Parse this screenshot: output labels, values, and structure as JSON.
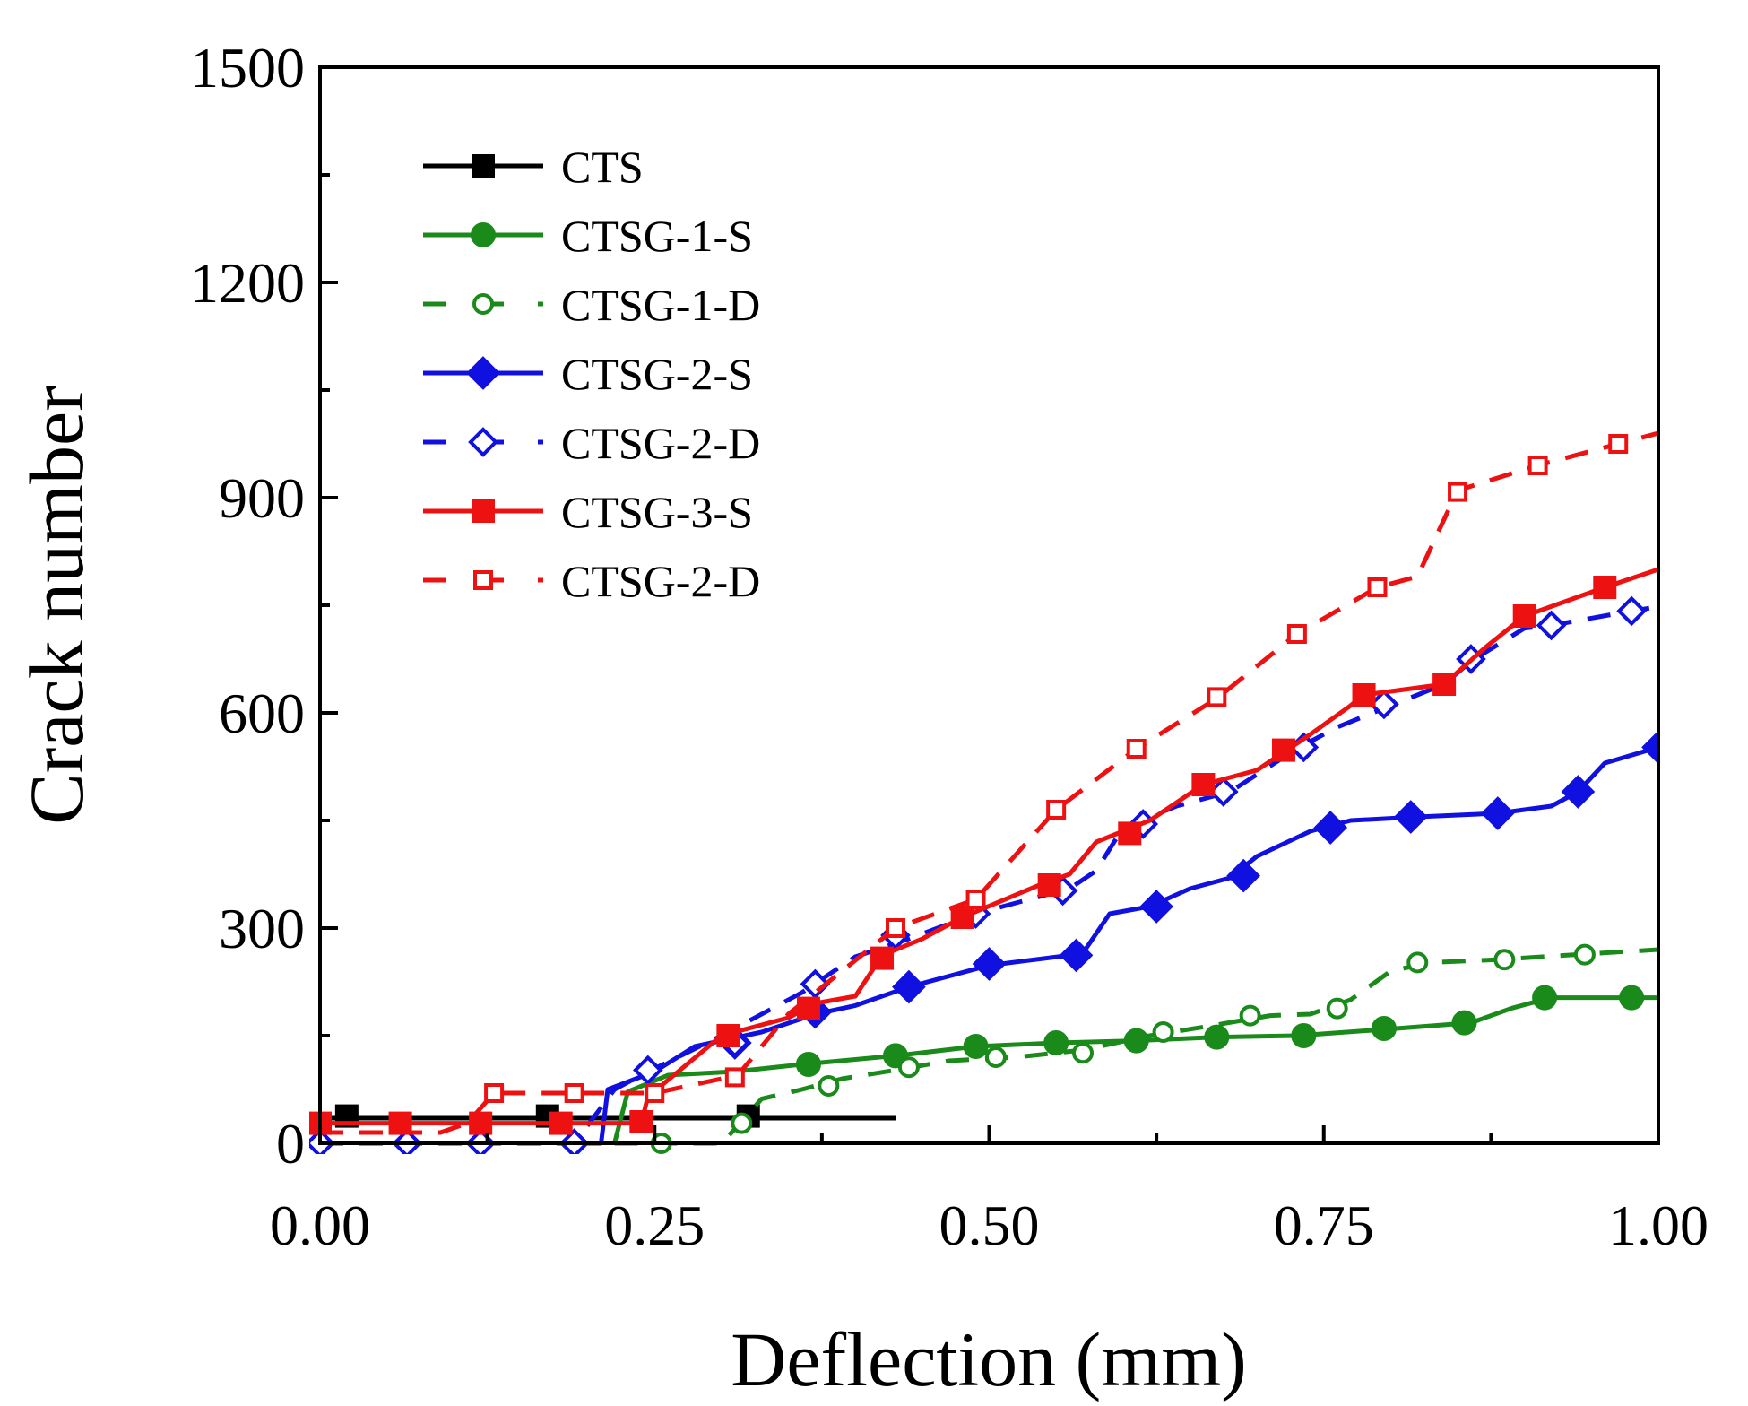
{
  "chart_data": {
    "type": "line",
    "title": "",
    "xlabel": "Deflection (mm)",
    "ylabel": "Crack number",
    "xlim": [
      0,
      1
    ],
    "ylim": [
      0,
      1500
    ],
    "x_ticks": [
      "0.00",
      "0.25",
      "0.50",
      "0.75",
      "1.00"
    ],
    "y_ticks": [
      "0",
      "300",
      "600",
      "900",
      "1200",
      "1500"
    ],
    "legend_position": "top-left",
    "series": [
      {
        "name": "CTS",
        "color": "#000000",
        "dash": "solid",
        "marker": "square",
        "filled": true,
        "line": [
          [
            0.0,
            35
          ],
          [
            0.43,
            35
          ]
        ],
        "markers": [
          [
            0.02,
            38
          ],
          [
            0.17,
            38
          ],
          [
            0.32,
            38
          ]
        ]
      },
      {
        "name": "CTSG-1-S",
        "color": "#1a8a1a",
        "dash": "solid",
        "marker": "circle",
        "filled": true,
        "line": [
          [
            0.22,
            0
          ],
          [
            0.23,
            72
          ],
          [
            0.26,
            95
          ],
          [
            0.31,
            100
          ],
          [
            0.36,
            110
          ],
          [
            0.43,
            122
          ],
          [
            0.49,
            135
          ],
          [
            0.55,
            140
          ],
          [
            0.61,
            143
          ],
          [
            0.67,
            148
          ],
          [
            0.73,
            150
          ],
          [
            0.79,
            158
          ],
          [
            0.86,
            168
          ],
          [
            0.89,
            188
          ],
          [
            0.92,
            203
          ],
          [
            1.0,
            203
          ]
        ],
        "markers": [
          [
            0.365,
            110
          ],
          [
            0.43,
            122
          ],
          [
            0.49,
            135
          ],
          [
            0.55,
            140
          ],
          [
            0.61,
            143
          ],
          [
            0.67,
            148
          ],
          [
            0.735,
            150
          ],
          [
            0.795,
            160
          ],
          [
            0.855,
            168
          ],
          [
            0.915,
            203
          ],
          [
            0.98,
            203
          ]
        ]
      },
      {
        "name": "CTSG-1-D",
        "color": "#1a8a1a",
        "dash": "dashed",
        "marker": "circle",
        "filled": false,
        "line": [
          [
            0.22,
            0
          ],
          [
            0.25,
            0
          ],
          [
            0.3,
            0
          ],
          [
            0.31,
            20
          ],
          [
            0.33,
            62
          ],
          [
            0.36,
            75
          ],
          [
            0.39,
            90
          ],
          [
            0.43,
            102
          ],
          [
            0.47,
            115
          ],
          [
            0.52,
            120
          ],
          [
            0.57,
            130
          ],
          [
            0.62,
            150
          ],
          [
            0.66,
            162
          ],
          [
            0.71,
            178
          ],
          [
            0.74,
            180
          ],
          [
            0.77,
            200
          ],
          [
            0.8,
            240
          ],
          [
            0.83,
            252
          ],
          [
            0.88,
            256
          ],
          [
            0.93,
            262
          ],
          [
            1.0,
            270
          ]
        ],
        "markers": [
          [
            0.255,
            0
          ],
          [
            0.315,
            28
          ],
          [
            0.38,
            80
          ],
          [
            0.44,
            106
          ],
          [
            0.505,
            120
          ],
          [
            0.57,
            126
          ],
          [
            0.63,
            155
          ],
          [
            0.695,
            178
          ],
          [
            0.76,
            188
          ],
          [
            0.82,
            252
          ],
          [
            0.885,
            256
          ],
          [
            0.945,
            263
          ]
        ]
      },
      {
        "name": "CTSG-2-S",
        "color": "#1010e0",
        "dash": "solid",
        "marker": "diamond",
        "filled": true,
        "line": [
          [
            0.18,
            0
          ],
          [
            0.21,
            0
          ],
          [
            0.215,
            75
          ],
          [
            0.25,
            100
          ],
          [
            0.28,
            135
          ],
          [
            0.33,
            155
          ],
          [
            0.37,
            180
          ],
          [
            0.4,
            192
          ],
          [
            0.44,
            218
          ],
          [
            0.5,
            248
          ],
          [
            0.56,
            262
          ],
          [
            0.57,
            265
          ],
          [
            0.59,
            320
          ],
          [
            0.62,
            330
          ],
          [
            0.65,
            355
          ],
          [
            0.68,
            370
          ],
          [
            0.7,
            400
          ],
          [
            0.74,
            435
          ],
          [
            0.77,
            450
          ],
          [
            0.82,
            455
          ],
          [
            0.88,
            460
          ],
          [
            0.92,
            470
          ],
          [
            0.94,
            490
          ],
          [
            0.96,
            530
          ],
          [
            1.0,
            552
          ]
        ],
        "markers": [
          [
            0.31,
            140
          ],
          [
            0.37,
            183
          ],
          [
            0.44,
            218
          ],
          [
            0.5,
            250
          ],
          [
            0.565,
            262
          ],
          [
            0.625,
            330
          ],
          [
            0.69,
            373
          ],
          [
            0.755,
            440
          ],
          [
            0.815,
            455
          ],
          [
            0.88,
            460
          ],
          [
            0.94,
            490
          ],
          [
            1.0,
            552
          ]
        ]
      },
      {
        "name": "CTSG-2-D",
        "color": "#1010e0",
        "dash": "dashed",
        "marker": "diamond",
        "filled": false,
        "line": [
          [
            0.0,
            0
          ],
          [
            0.06,
            0
          ],
          [
            0.12,
            0
          ],
          [
            0.19,
            0
          ],
          [
            0.22,
            75
          ],
          [
            0.24,
            95
          ],
          [
            0.3,
            150
          ],
          [
            0.36,
            210
          ],
          [
            0.4,
            260
          ],
          [
            0.44,
            285
          ],
          [
            0.49,
            320
          ],
          [
            0.56,
            355
          ],
          [
            0.58,
            380
          ],
          [
            0.6,
            440
          ],
          [
            0.64,
            470
          ],
          [
            0.68,
            490
          ],
          [
            0.73,
            550
          ],
          [
            0.76,
            580
          ],
          [
            0.8,
            610
          ],
          [
            0.84,
            640
          ],
          [
            0.86,
            672
          ],
          [
            0.9,
            718
          ],
          [
            0.92,
            722
          ],
          [
            0.98,
            742
          ],
          [
            1.0,
            748
          ]
        ],
        "markers": [
          [
            0.0,
            0
          ],
          [
            0.065,
            0
          ],
          [
            0.12,
            0
          ],
          [
            0.19,
            0
          ],
          [
            0.245,
            102
          ],
          [
            0.31,
            140
          ],
          [
            0.37,
            222
          ],
          [
            0.43,
            290
          ],
          [
            0.49,
            320
          ],
          [
            0.555,
            352
          ],
          [
            0.615,
            445
          ],
          [
            0.675,
            490
          ],
          [
            0.735,
            552
          ],
          [
            0.795,
            612
          ],
          [
            0.86,
            675
          ],
          [
            0.92,
            722
          ],
          [
            0.98,
            742
          ]
        ]
      },
      {
        "name": "CTSG-3-S",
        "color": "#ee1111",
        "dash": "solid",
        "marker": "square",
        "filled": true,
        "line": [
          [
            0.0,
            28
          ],
          [
            0.24,
            28
          ],
          [
            0.245,
            65
          ],
          [
            0.3,
            150
          ],
          [
            0.35,
            175
          ],
          [
            0.37,
            195
          ],
          [
            0.4,
            205
          ],
          [
            0.42,
            262
          ],
          [
            0.45,
            285
          ],
          [
            0.48,
            315
          ],
          [
            0.54,
            362
          ],
          [
            0.56,
            375
          ],
          [
            0.58,
            420
          ],
          [
            0.62,
            450
          ],
          [
            0.66,
            500
          ],
          [
            0.7,
            520
          ],
          [
            0.74,
            570
          ],
          [
            0.77,
            610
          ],
          [
            0.78,
            625
          ],
          [
            0.84,
            640
          ],
          [
            0.87,
            690
          ],
          [
            0.9,
            735
          ],
          [
            0.96,
            775
          ],
          [
            1.0,
            800
          ]
        ],
        "markers": [
          [
            0.0,
            28
          ],
          [
            0.06,
            28
          ],
          [
            0.12,
            28
          ],
          [
            0.18,
            28
          ],
          [
            0.24,
            30
          ],
          [
            0.305,
            150
          ],
          [
            0.365,
            188
          ],
          [
            0.42,
            258
          ],
          [
            0.48,
            315
          ],
          [
            0.545,
            360
          ],
          [
            0.605,
            432
          ],
          [
            0.66,
            500
          ],
          [
            0.72,
            548
          ],
          [
            0.78,
            625
          ],
          [
            0.84,
            640
          ],
          [
            0.9,
            735
          ],
          [
            0.96,
            775
          ]
        ]
      },
      {
        "name": "CTSG-2-D",
        "color": "#ee1111",
        "dash": "dashed",
        "marker": "square",
        "filled": false,
        "line": [
          [
            0.0,
            15
          ],
          [
            0.09,
            15
          ],
          [
            0.11,
            28
          ],
          [
            0.13,
            70
          ],
          [
            0.19,
            70
          ],
          [
            0.23,
            70
          ],
          [
            0.25,
            70
          ],
          [
            0.3,
            90
          ],
          [
            0.31,
            90
          ],
          [
            0.35,
            180
          ],
          [
            0.43,
            300
          ],
          [
            0.49,
            340
          ],
          [
            0.55,
            465
          ],
          [
            0.61,
            550
          ],
          [
            0.67,
            620
          ],
          [
            0.73,
            710
          ],
          [
            0.79,
            775
          ],
          [
            0.82,
            790
          ],
          [
            0.85,
            910
          ],
          [
            0.91,
            945
          ],
          [
            0.97,
            975
          ],
          [
            1.0,
            990
          ]
        ],
        "markers": [
          [
            0.13,
            70
          ],
          [
            0.19,
            70
          ],
          [
            0.25,
            70
          ],
          [
            0.31,
            92
          ],
          [
            0.43,
            300
          ],
          [
            0.49,
            340
          ],
          [
            0.55,
            465
          ],
          [
            0.61,
            550
          ],
          [
            0.67,
            622
          ],
          [
            0.73,
            710
          ],
          [
            0.79,
            775
          ],
          [
            0.85,
            908
          ],
          [
            0.91,
            945
          ],
          [
            0.97,
            975
          ]
        ]
      }
    ]
  }
}
